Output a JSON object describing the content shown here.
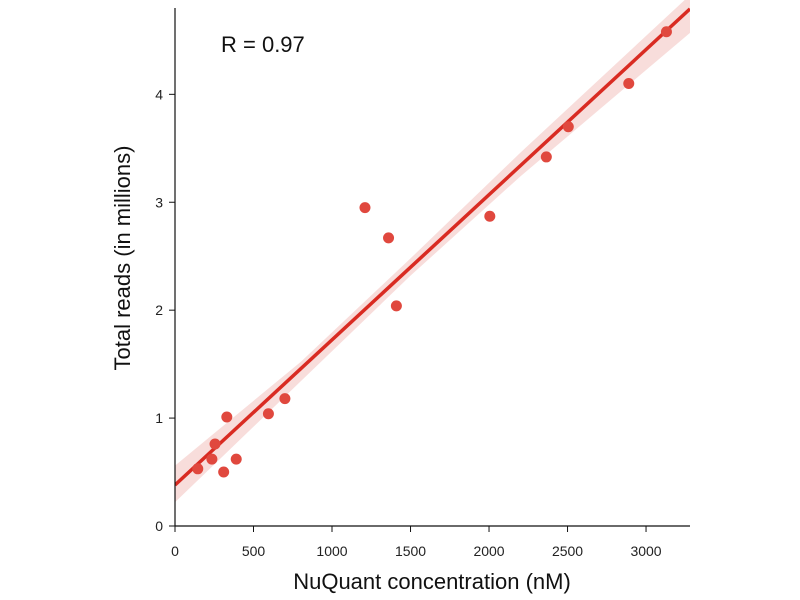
{
  "chart_data": {
    "type": "scatter",
    "title": "",
    "xlabel": "NuQuant concentration (nM)",
    "ylabel": "Total reads (in millions)",
    "annotation": "R = 0.97",
    "xlim": [
      0,
      3280
    ],
    "ylim": [
      0,
      4.8
    ],
    "xticks": [
      0,
      500,
      1000,
      1500,
      2000,
      2500,
      3000
    ],
    "yticks": [
      0,
      1,
      2,
      3,
      4
    ],
    "grid": false,
    "colors": {
      "points": "#e0483e",
      "line": "#d92b22",
      "band": "#f7d9d7"
    },
    "points": [
      {
        "x": 145,
        "y": 0.53
      },
      {
        "x": 235,
        "y": 0.62
      },
      {
        "x": 255,
        "y": 0.76
      },
      {
        "x": 310,
        "y": 0.5
      },
      {
        "x": 330,
        "y": 1.01
      },
      {
        "x": 390,
        "y": 0.62
      },
      {
        "x": 595,
        "y": 1.04
      },
      {
        "x": 700,
        "y": 1.18
      },
      {
        "x": 1210,
        "y": 2.95
      },
      {
        "x": 1360,
        "y": 2.67
      },
      {
        "x": 1410,
        "y": 2.04
      },
      {
        "x": 2005,
        "y": 2.87
      },
      {
        "x": 2365,
        "y": 3.42
      },
      {
        "x": 2505,
        "y": 3.7
      },
      {
        "x": 2890,
        "y": 4.1
      },
      {
        "x": 3130,
        "y": 4.58
      }
    ],
    "fit": {
      "intercept": 0.38,
      "slope": 0.001345
    },
    "ci_band": [
      {
        "x": 0,
        "lo": 0.22,
        "hi": 0.56
      },
      {
        "x": 800,
        "lo": 1.34,
        "hi": 1.52
      },
      {
        "x": 1500,
        "lo": 2.32,
        "hi": 2.48
      },
      {
        "x": 2200,
        "lo": 3.24,
        "hi": 3.46
      },
      {
        "x": 3280,
        "lo": 4.57,
        "hi": 4.92
      }
    ]
  }
}
